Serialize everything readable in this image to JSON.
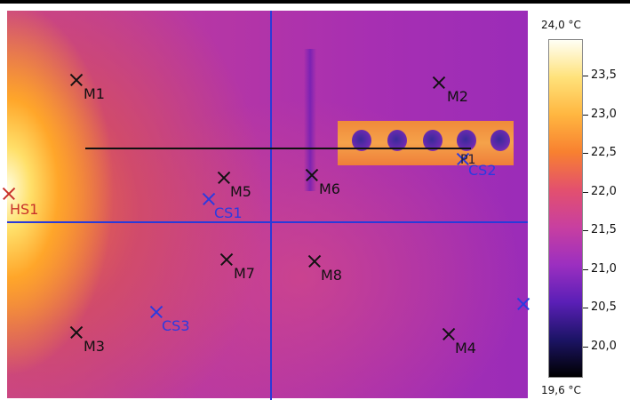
{
  "scale": {
    "max_label": "24,0 °C",
    "min_label": "19,6 °C",
    "ticks": [
      "23,5",
      "23,0",
      "22,5",
      "22,0",
      "21,5",
      "21,0",
      "20,5",
      "20,0"
    ],
    "colors": [
      "#fffff5",
      "#ffe27a",
      "#ffb640",
      "#f88030",
      "#e3506e",
      "#c83fa0",
      "#9c2fc0",
      "#5b1fb7",
      "#1c1466",
      "#000000"
    ]
  },
  "markers": {
    "m1": "M1",
    "m2": "M2",
    "m3": "M3",
    "m4": "M4",
    "m5": "M5",
    "m6": "M6",
    "m7": "M7",
    "m8": "M8",
    "cs1": "CS1",
    "cs2": "CS2",
    "cs3": "CS3",
    "hs1": "HS1",
    "p1": "P1"
  },
  "colors": {
    "cold_spot": "#2b3be0",
    "hot_spot": "#c8302a",
    "cross_lines": "#2a3ad8"
  }
}
